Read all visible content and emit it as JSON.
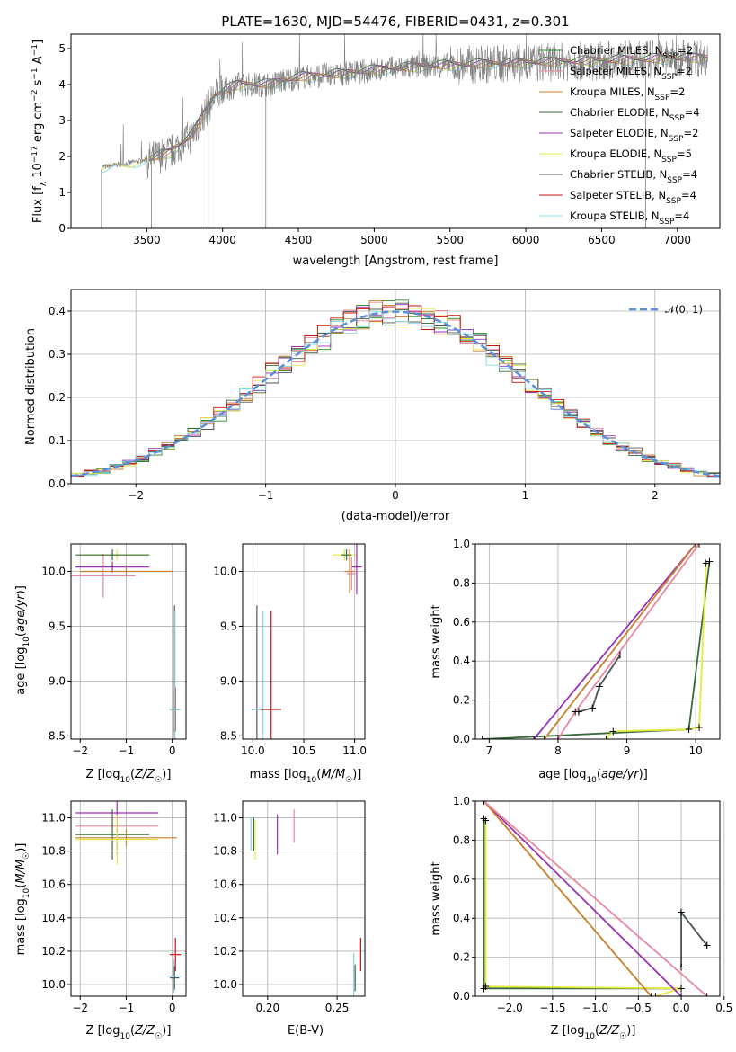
{
  "figure_title": "PLATE=1630, MJD=54476, FIBERID=0431, z=0.301",
  "colors": {
    "chabrier_miles": "#228B22",
    "salpeter_miles": "#e9889f",
    "kroupa_miles": "#c87f2a",
    "chabrier_elodie": "#3a6b3a",
    "salpeter_elodie": "#9932b5",
    "kroupa_elodie": "#e5ea3f",
    "chabrier_stelib": "#555555",
    "salpeter_stelib": "#cc1111",
    "kroupa_stelib": "#86d6e6",
    "data": "#7f7f7f",
    "gaussian": "#5b8fd8",
    "grid": "#b0b0b0"
  },
  "legend_models": [
    {
      "key": "chabrier_miles",
      "label": "Chabrier MILES, N",
      "sub": "SSP",
      "tail": "=2"
    },
    {
      "key": "salpeter_miles",
      "label": "Salpeter MILES, N",
      "sub": "SSP",
      "tail": "=2"
    },
    {
      "key": "kroupa_miles",
      "label": "Kroupa MILES, N",
      "sub": "SSP",
      "tail": "=2"
    },
    {
      "key": "chabrier_elodie",
      "label": "Chabrier ELODIE, N",
      "sub": "SSP",
      "tail": "=4"
    },
    {
      "key": "salpeter_elodie",
      "label": "Salpeter ELODIE, N",
      "sub": "SSP",
      "tail": "=2"
    },
    {
      "key": "kroupa_elodie",
      "label": "Kroupa ELODIE, N",
      "sub": "SSP",
      "tail": "=5"
    },
    {
      "key": "chabrier_stelib",
      "label": "Chabrier STELIB, N",
      "sub": "SSP",
      "tail": "=4"
    },
    {
      "key": "salpeter_stelib",
      "label": "Salpeter STELIB, N",
      "sub": "SSP",
      "tail": "=4"
    },
    {
      "key": "kroupa_stelib",
      "label": "Kroupa STELIB, N",
      "sub": "SSP",
      "tail": "=4"
    }
  ],
  "chart_data": [
    {
      "id": "spectrum",
      "type": "line",
      "xlabel": "wavelength [Angstrom, rest frame]",
      "ylabel": "Flux [f_λ 10^-17 erg cm^-2 s^-1 A^-1]",
      "xlim": [
        3000,
        7280
      ],
      "ylim": [
        0,
        5.4
      ],
      "xticks": [
        3500,
        4000,
        4500,
        5000,
        5500,
        6000,
        6500,
        7000
      ],
      "yticks": [
        0,
        1,
        2,
        3,
        4,
        5
      ],
      "grid": false,
      "legend_position": "top-right",
      "data_wavelength_range": [
        3200,
        7200
      ],
      "model_continuum": [
        [
          3200,
          1.7
        ],
        [
          3500,
          1.9
        ],
        [
          3650,
          2.1
        ],
        [
          3800,
          2.6
        ],
        [
          3950,
          3.7
        ],
        [
          4100,
          4.0
        ],
        [
          4300,
          4.0
        ],
        [
          4500,
          4.2
        ],
        [
          4800,
          4.3
        ],
        [
          5000,
          4.4
        ],
        [
          5300,
          4.5
        ],
        [
          5600,
          4.55
        ],
        [
          6000,
          4.6
        ],
        [
          6400,
          4.65
        ],
        [
          6800,
          4.7
        ],
        [
          7200,
          4.75
        ]
      ]
    },
    {
      "id": "residuals",
      "type": "step",
      "xlabel": "(data-model)/error",
      "ylabel": "Normed distribution",
      "xlim": [
        -2.5,
        2.5
      ],
      "ylim": [
        0,
        0.45
      ],
      "xticks": [
        -2,
        -1,
        0,
        1,
        2
      ],
      "yticks": [
        0.0,
        0.1,
        0.2,
        0.3,
        0.4
      ],
      "grid": true,
      "legend_position": "top-right",
      "gaussian_label": "𝒩(0, 1)",
      "bin_width": 0.1
    },
    {
      "id": "age_vs_Z",
      "type": "errorbar",
      "xlabel": "Z [log10(Z/Z☉)]",
      "ylabel": "age  [log10(age/yr)]",
      "xlim": [
        -2.2,
        0.3
      ],
      "ylim": [
        8.47,
        10.25
      ],
      "xticks": [
        -2,
        -1,
        0
      ],
      "yticks": [
        8.5,
        9.0,
        9.5,
        10.0
      ],
      "points": [
        {
          "model": "chabrier_miles",
          "x": 0.05,
          "y": 8.74,
          "xerr": 0.1,
          "yerr": 0.2
        },
        {
          "model": "kroupa_elodie",
          "x": -1.2,
          "y": 10.15,
          "xerr": 0.7,
          "yerr": 0.05
        },
        {
          "model": "salpeter_elodie",
          "x": -1.3,
          "y": 10.04,
          "xerr": 0.8,
          "yerr": 0.05
        },
        {
          "model": "kroupa_miles",
          "x": -1.0,
          "y": 10.0,
          "xerr": 1.0,
          "yerr": 0.05
        },
        {
          "model": "salpeter_miles",
          "x": -1.5,
          "y": 9.96,
          "xerr": 0.7,
          "yerr": 0.2
        },
        {
          "model": "chabrier_elodie",
          "x": -1.3,
          "y": 10.15,
          "xerr": 0.8,
          "yerr": 0.05
        },
        {
          "model": "chabrier_stelib",
          "x": 0.05,
          "y": 8.74,
          "xerr": 0.1,
          "yerr": 0.95
        },
        {
          "model": "salpeter_stelib",
          "x": 0.07,
          "y": 8.74,
          "xerr": 0.05,
          "yerr": 0.2
        },
        {
          "model": "kroupa_stelib",
          "x": 0.06,
          "y": 8.74,
          "xerr": 0.12,
          "yerr": 0.9
        }
      ]
    },
    {
      "id": "age_vs_mass",
      "type": "errorbar",
      "xlabel": "mass [log10(M/M☉)]",
      "ylabel": "",
      "xlim": [
        9.9,
        11.1
      ],
      "ylim": [
        8.47,
        10.25
      ],
      "xticks": [
        10.0,
        10.5,
        11.0
      ],
      "yticks": [
        8.5,
        9.0,
        9.5,
        10.0
      ],
      "points": [
        {
          "model": "chabrier_stelib",
          "x": 10.04,
          "y": 8.74,
          "xerr": 0.05,
          "yerr": 0.95
        },
        {
          "model": "kroupa_stelib",
          "x": 10.1,
          "y": 8.74,
          "xerr": 0.1,
          "yerr": 0.9
        },
        {
          "model": "salpeter_stelib",
          "x": 10.18,
          "y": 8.74,
          "xerr": 0.1,
          "yerr": 0.9
        },
        {
          "model": "kroupa_elodie",
          "x": 10.9,
          "y": 10.15,
          "xerr": 0.12,
          "yerr": 0.05
        },
        {
          "model": "chabrier_elodie",
          "x": 10.92,
          "y": 10.15,
          "xerr": 0.05,
          "yerr": 0.05
        },
        {
          "model": "salpeter_elodie",
          "x": 11.02,
          "y": 10.04,
          "xerr": 0.05,
          "yerr": 0.25
        },
        {
          "model": "kroupa_miles",
          "x": 10.95,
          "y": 10.0,
          "xerr": 0.05,
          "yerr": 0.2
        },
        {
          "model": "salpeter_miles",
          "x": 10.97,
          "y": 9.98,
          "xerr": 0.05,
          "yerr": 0.15
        }
      ]
    },
    {
      "id": "weight_vs_age",
      "type": "line",
      "xlabel": "age  [log10(age/yr)]",
      "ylabel": "mass weight",
      "xlim": [
        6.8,
        10.35
      ],
      "ylim": [
        0,
        1
      ],
      "xticks": [
        7,
        8,
        9,
        10
      ],
      "yticks": [
        0.0,
        0.2,
        0.4,
        0.6,
        0.8,
        1.0
      ],
      "series": [
        {
          "model": "chabrier_elodie",
          "x": [
            6.9,
            9.9,
            10.2
          ],
          "y": [
            0.0,
            0.05,
            0.91
          ]
        },
        {
          "model": "kroupa_elodie",
          "x": [
            8.7,
            8.8,
            9.9,
            10.05,
            10.15
          ],
          "y": [
            0.0,
            0.04,
            0.05,
            0.06,
            0.9
          ]
        },
        {
          "model": "salpeter_elodie",
          "x": [
            7.65,
            10.0
          ],
          "y": [
            0.0,
            1.0
          ]
        },
        {
          "model": "kroupa_miles",
          "x": [
            7.8,
            10.0
          ],
          "y": [
            0.0,
            1.0
          ]
        },
        {
          "model": "salpeter_miles",
          "x": [
            8.0,
            8.25,
            10.05
          ],
          "y": [
            0.0,
            0.14,
            1.0
          ]
        },
        {
          "model": "kroupa_stelib",
          "x": [
            8.3,
            8.5,
            8.6,
            8.9
          ],
          "y": [
            0.14,
            0.16,
            0.27,
            0.43
          ]
        },
        {
          "model": "chabrier_stelib",
          "x": [
            8.3,
            8.5,
            8.6,
            8.9
          ],
          "y": [
            0.14,
            0.16,
            0.27,
            0.43
          ]
        }
      ]
    },
    {
      "id": "mass_vs_Z",
      "type": "errorbar",
      "xlabel": "Z [log10(Z/Z☉)]",
      "ylabel": "mass [log10(M/M☉)]",
      "xlim": [
        -2.2,
        0.3
      ],
      "ylim": [
        9.93,
        11.1
      ],
      "xticks": [
        -2,
        -1,
        0
      ],
      "yticks": [
        10.0,
        10.2,
        10.4,
        10.6,
        10.8,
        11.0
      ],
      "points": [
        {
          "model": "salpeter_elodie",
          "x": -1.2,
          "y": 11.03,
          "xerr": 0.9,
          "yerr": 0.25
        },
        {
          "model": "salpeter_miles",
          "x": -1.2,
          "y": 10.95,
          "xerr": 0.9,
          "yerr": 0.05
        },
        {
          "model": "chabrier_elodie",
          "x": -1.3,
          "y": 10.9,
          "xerr": 0.8,
          "yerr": 0.15
        },
        {
          "model": "kroupa_miles",
          "x": -1.0,
          "y": 10.88,
          "xerr": 1.1,
          "yerr": 0.05
        },
        {
          "model": "kroupa_elodie",
          "x": -1.2,
          "y": 10.87,
          "xerr": 0.9,
          "yerr": 0.15
        },
        {
          "model": "salpeter_stelib",
          "x": 0.07,
          "y": 10.18,
          "xerr": 0.12,
          "yerr": 0.1
        },
        {
          "model": "kroupa_stelib",
          "x": 0.04,
          "y": 10.05,
          "xerr": 0.15,
          "yerr": 0.1
        },
        {
          "model": "chabrier_stelib",
          "x": 0.05,
          "y": 10.04,
          "xerr": 0.1,
          "yerr": 0.07
        }
      ]
    },
    {
      "id": "mass_vs_ebv",
      "type": "errorbar",
      "xlabel": "E(B-V)",
      "ylabel": "",
      "xlim": [
        0.182,
        0.27
      ],
      "ylim": [
        9.93,
        11.1
      ],
      "xticks": [
        0.2,
        0.25
      ],
      "yticks": [
        10.0,
        10.2,
        10.4,
        10.6,
        10.8,
        11.0
      ],
      "points": [
        {
          "model": "kroupa_stelib",
          "x": 0.188,
          "y": 10.9,
          "xerr": 0.0,
          "yerr": 0.1
        },
        {
          "model": "kroupa_elodie",
          "x": 0.191,
          "y": 10.87,
          "xerr": 0.0,
          "yerr": 0.12
        },
        {
          "model": "chabrier_elodie",
          "x": 0.19,
          "y": 10.9,
          "xerr": 0.0,
          "yerr": 0.1
        },
        {
          "model": "salpeter_elodie",
          "x": 0.207,
          "y": 10.9,
          "xerr": 0.0,
          "yerr": 0.12
        },
        {
          "model": "salpeter_miles",
          "x": 0.219,
          "y": 10.95,
          "xerr": 0.0,
          "yerr": 0.1
        },
        {
          "model": "kroupa_stelib",
          "x": 0.262,
          "y": 10.05,
          "xerr": 0.0,
          "yerr": 0.14
        },
        {
          "model": "chabrier_stelib",
          "x": 0.263,
          "y": 10.04,
          "xerr": 0.0,
          "yerr": 0.08
        },
        {
          "model": "salpeter_stelib",
          "x": 0.267,
          "y": 10.18,
          "xerr": 0.0,
          "yerr": 0.1
        }
      ]
    },
    {
      "id": "weight_vs_Z",
      "type": "line",
      "xlabel": "Z [log10(Z/Z☉)]",
      "ylabel": "mass weight",
      "xlim": [
        -2.4,
        0.45
      ],
      "ylim": [
        0,
        1
      ],
      "xticks": [
        -2.0,
        -1.5,
        -1.0,
        -0.5,
        0.0,
        0.5
      ],
      "yticks": [
        0.0,
        0.2,
        0.4,
        0.6,
        0.8,
        1.0
      ],
      "series": [
        {
          "model": "chabrier_elodie",
          "x": [
            -2.3,
            -2.3,
            0.0
          ],
          "y": [
            0.91,
            0.04,
            0.04
          ]
        },
        {
          "model": "kroupa_elodie",
          "x": [
            -2.28,
            -2.28,
            0.0,
            -0.3
          ],
          "y": [
            0.9,
            0.05,
            0.04,
            0.0
          ]
        },
        {
          "model": "salpeter_elodie",
          "x": [
            -2.3,
            0.0
          ],
          "y": [
            1.0,
            0.0
          ]
        },
        {
          "model": "kroupa_miles",
          "x": [
            -2.3,
            -0.35
          ],
          "y": [
            1.0,
            0.0
          ]
        },
        {
          "model": "salpeter_miles",
          "x": [
            -2.3,
            0.3
          ],
          "y": [
            1.0,
            0.0
          ]
        },
        {
          "model": "kroupa_stelib",
          "x": [
            0.0,
            0.0,
            0.3
          ],
          "y": [
            0.15,
            0.43,
            0.26
          ]
        },
        {
          "model": "chabrier_stelib",
          "x": [
            0.0,
            0.0,
            0.3
          ],
          "y": [
            0.15,
            0.43,
            0.26
          ]
        }
      ]
    }
  ],
  "tick_text": {
    "spectrum_x": [
      "3500",
      "4000",
      "4500",
      "5000",
      "5500",
      "6000",
      "6500",
      "7000"
    ],
    "spectrum_y": [
      "0",
      "1",
      "2",
      "3",
      "4",
      "5"
    ],
    "resid_x": [
      "−2",
      "−1",
      "0",
      "1",
      "2"
    ],
    "resid_y": [
      "0.0",
      "0.1",
      "0.2",
      "0.3",
      "0.4"
    ]
  }
}
